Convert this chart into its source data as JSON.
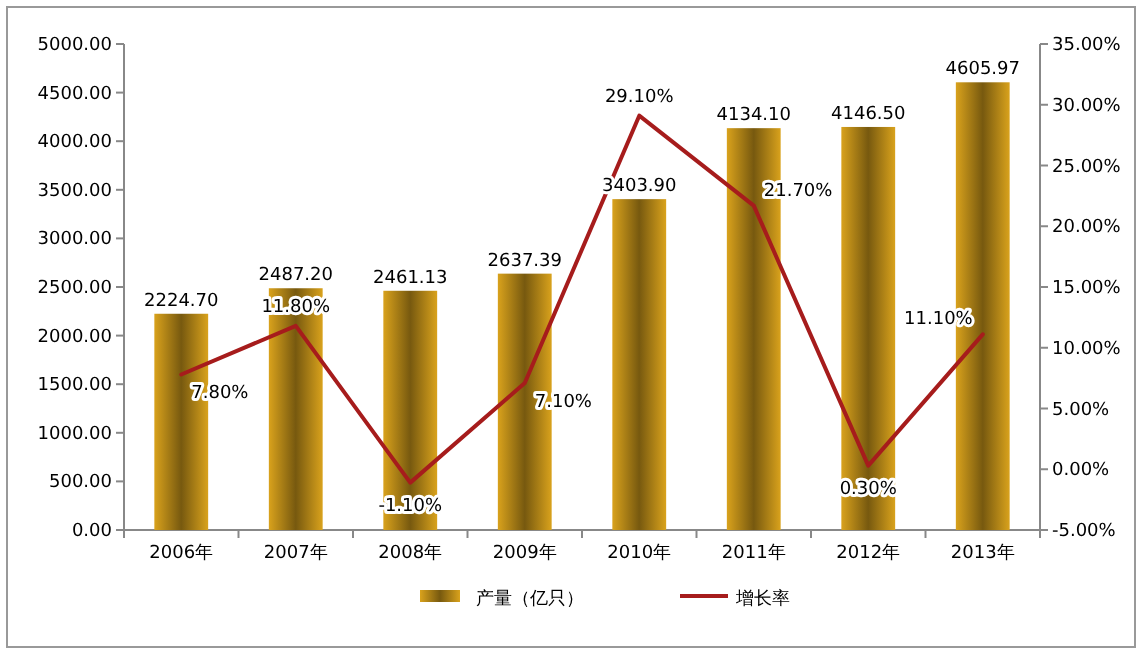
{
  "chart_data": {
    "type": "bar",
    "categories": [
      "2006年",
      "2007年",
      "2008年",
      "2009年",
      "2010年",
      "2011年",
      "2012年",
      "2013年"
    ],
    "series": [
      {
        "name": "产量（亿只）",
        "color": "#d9a21c",
        "values": [
          2224.7,
          2487.2,
          2461.13,
          2637.39,
          3403.9,
          4134.1,
          4146.5,
          4605.97
        ],
        "value_labels": [
          "2224.70",
          "2487.20",
          "2461.13",
          "2637.39",
          "3403.90",
          "4134.10",
          "4146.50",
          "4605.97"
        ]
      },
      {
        "name": "增长率",
        "type": "line",
        "axis": "y2",
        "color": "#a61c1c",
        "values": [
          7.8,
          11.8,
          -1.1,
          7.1,
          29.1,
          21.7,
          0.3,
          11.1
        ],
        "value_labels": [
          "7.80%",
          "11.80%",
          "-1.10%",
          "7.10%",
          "29.10%",
          "21.70%",
          "0.30%",
          "11.10%"
        ]
      }
    ],
    "ylim": [
      0,
      5000
    ],
    "yticks": [
      {
        "value": 0,
        "label": "0.00"
      },
      {
        "value": 500,
        "label": "500.00"
      },
      {
        "value": 1000,
        "label": "1000.00"
      },
      {
        "value": 1500,
        "label": "1500.00"
      },
      {
        "value": 2000,
        "label": "2000.00"
      },
      {
        "value": 2500,
        "label": "2500.00"
      },
      {
        "value": 3000,
        "label": "3000.00"
      },
      {
        "value": 3500,
        "label": "3500.00"
      },
      {
        "value": 4000,
        "label": "4000.00"
      },
      {
        "value": 4500,
        "label": "4500.00"
      },
      {
        "value": 5000,
        "label": "5000.00"
      }
    ],
    "y2lim": [
      -5,
      35
    ],
    "y2ticks": [
      {
        "value": -5,
        "label": "-5.00%"
      },
      {
        "value": 0,
        "label": "0.00%"
      },
      {
        "value": 5,
        "label": "5.00%"
      },
      {
        "value": 10,
        "label": "10.00%"
      },
      {
        "value": 15,
        "label": "15.00%"
      },
      {
        "value": 20,
        "label": "20.00%"
      },
      {
        "value": 25,
        "label": "25.00%"
      },
      {
        "value": 30,
        "label": "30.00%"
      },
      {
        "value": 35,
        "label": "35.00%"
      }
    ],
    "legend": "bottom",
    "marker": "none",
    "line_style": "solid"
  }
}
